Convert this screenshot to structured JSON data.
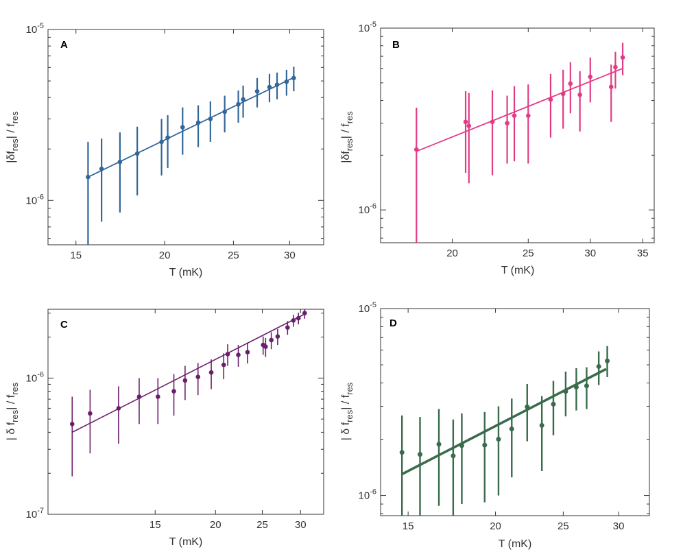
{
  "chart_data": [
    {
      "type": "scatter",
      "panel": "A",
      "color": "#336699",
      "xscale": "log",
      "yscale": "log",
      "xlim": [
        13.7,
        33.5
      ],
      "ylim": [
        5.5e-07,
        1e-05
      ],
      "xticks": [
        15,
        20,
        25,
        30
      ],
      "xtick_labels": [
        "15",
        "20",
        "25",
        "30"
      ],
      "yticks": [
        1e-06,
        1e-05
      ],
      "ytick_labels": [
        {
          "base": "10",
          "exp": "-6"
        },
        {
          "base": "10",
          "exp": "-5"
        }
      ],
      "xlabel": "T (mK)",
      "ylabel": {
        "parts": [
          "|δf",
          "res",
          "| / f",
          "res"
        ]
      },
      "fit": {
        "x": [
          15.6,
          30.3
        ],
        "y": [
          1.37e-06,
          5.2e-06
        ]
      },
      "points": [
        {
          "x": 15.6,
          "y": 1.37e-06,
          "ylo": 5.5e-07,
          "yhi": 2.2e-06
        },
        {
          "x": 16.3,
          "y": 1.53e-06,
          "ylo": 7.5e-07,
          "yhi": 2.3e-06
        },
        {
          "x": 17.3,
          "y": 1.68e-06,
          "ylo": 8.5e-07,
          "yhi": 2.5e-06
        },
        {
          "x": 18.3,
          "y": 1.88e-06,
          "ylo": 1.07e-06,
          "yhi": 2.7e-06
        },
        {
          "x": 19.8,
          "y": 2.2e-06,
          "ylo": 1.4e-06,
          "yhi": 3e-06
        },
        {
          "x": 20.2,
          "y": 2.33e-06,
          "ylo": 1.55e-06,
          "yhi": 3.15e-06
        },
        {
          "x": 21.2,
          "y": 2.68e-06,
          "ylo": 1.85e-06,
          "yhi": 3.5e-06
        },
        {
          "x": 22.3,
          "y": 2.85e-06,
          "ylo": 2.05e-06,
          "yhi": 3.6e-06
        },
        {
          "x": 23.2,
          "y": 3e-06,
          "ylo": 2.2e-06,
          "yhi": 3.8e-06
        },
        {
          "x": 24.3,
          "y": 3.3e-06,
          "ylo": 2.5e-06,
          "yhi": 4.1e-06
        },
        {
          "x": 25.4,
          "y": 3.65e-06,
          "ylo": 2.85e-06,
          "yhi": 4.4e-06
        },
        {
          "x": 25.8,
          "y": 3.9e-06,
          "ylo": 3.05e-06,
          "yhi": 4.7e-06
        },
        {
          "x": 27.0,
          "y": 4.35e-06,
          "ylo": 3.5e-06,
          "yhi": 5.2e-06
        },
        {
          "x": 28.1,
          "y": 4.6e-06,
          "ylo": 3.75e-06,
          "yhi": 5.5e-06
        },
        {
          "x": 28.8,
          "y": 4.75e-06,
          "ylo": 3.9e-06,
          "yhi": 5.6e-06
        },
        {
          "x": 29.7,
          "y": 4.95e-06,
          "ylo": 4.1e-06,
          "yhi": 5.8e-06
        },
        {
          "x": 30.4,
          "y": 5.2e-06,
          "ylo": 4.35e-06,
          "yhi": 6.05e-06
        }
      ]
    },
    {
      "type": "scatter",
      "panel": "B",
      "color": "#e23b86",
      "xscale": "log",
      "yscale": "log",
      "xlim": [
        16.2,
        36.2
      ],
      "ylim": [
        6.6e-07,
        1e-05
      ],
      "xticks": [
        20,
        25,
        30,
        35
      ],
      "xtick_labels": [
        "20",
        "25",
        "30",
        "35"
      ],
      "yticks": [
        1e-06,
        1e-05
      ],
      "ytick_labels": [
        {
          "base": "10",
          "exp": "-6"
        },
        {
          "base": "10",
          "exp": "-5"
        }
      ],
      "xlabel": "T (mK)",
      "ylabel": {
        "parts": [
          "|δf",
          "res",
          "| / f",
          "res"
        ]
      },
      "fit": {
        "x": [
          18.0,
          33.0
        ],
        "y": [
          2.1e-06,
          6e-06
        ]
      },
      "points": [
        {
          "x": 18.0,
          "y": 2.15e-06,
          "ylo": 6.6e-07,
          "yhi": 3.65e-06
        },
        {
          "x": 20.8,
          "y": 3.05e-06,
          "ylo": 1.6e-06,
          "yhi": 4.5e-06
        },
        {
          "x": 21.0,
          "y": 2.9e-06,
          "ylo": 1.4e-06,
          "yhi": 4.4e-06
        },
        {
          "x": 22.5,
          "y": 3.05e-06,
          "ylo": 1.55e-06,
          "yhi": 4.55e-06
        },
        {
          "x": 23.5,
          "y": 3e-06,
          "ylo": 1.8e-06,
          "yhi": 4.25e-06
        },
        {
          "x": 24.0,
          "y": 3.3e-06,
          "ylo": 1.85e-06,
          "yhi": 4.8e-06
        },
        {
          "x": 25.0,
          "y": 3.3e-06,
          "ylo": 1.8e-06,
          "yhi": 4.9e-06
        },
        {
          "x": 26.7,
          "y": 4.05e-06,
          "ylo": 2.5e-06,
          "yhi": 5.6e-06
        },
        {
          "x": 27.7,
          "y": 4.35e-06,
          "ylo": 2.8e-06,
          "yhi": 5.9e-06
        },
        {
          "x": 28.3,
          "y": 4.95e-06,
          "ylo": 3.4e-06,
          "yhi": 6.5e-06
        },
        {
          "x": 29.1,
          "y": 4.3e-06,
          "ylo": 2.7e-06,
          "yhi": 5.8e-06
        },
        {
          "x": 30.0,
          "y": 5.4e-06,
          "ylo": 3.9e-06,
          "yhi": 6.9e-06
        },
        {
          "x": 31.9,
          "y": 4.75e-06,
          "ylo": 3.05e-06,
          "yhi": 6.3e-06
        },
        {
          "x": 32.3,
          "y": 6.1e-06,
          "ylo": 4.65e-06,
          "yhi": 7.4e-06
        },
        {
          "x": 33.0,
          "y": 6.9e-06,
          "ylo": 5.5e-06,
          "yhi": 8.3e-06
        }
      ]
    },
    {
      "type": "scatter",
      "panel": "C",
      "color": "#6a1f6a",
      "xscale": "log",
      "yscale": "log",
      "xlim": [
        9.0,
        33.5
      ],
      "ylim": [
        1e-07,
        3.2e-06
      ],
      "xticks": [
        15,
        20,
        25,
        30
      ],
      "xtick_labels": [
        "15",
        "20",
        "25",
        "30"
      ],
      "yticks": [
        1e-07,
        1e-06
      ],
      "ytick_labels": [
        {
          "base": "10",
          "exp": "-7"
        },
        {
          "base": "10",
          "exp": "-6"
        }
      ],
      "xlabel": "T (mK)",
      "ylabel": {
        "parts": [
          "| δ f",
          "res",
          "| / f",
          "res"
        ]
      },
      "fit": {
        "x": [
          10.1,
          30.6
        ],
        "y": [
          4e-07,
          2.95e-06
        ]
      },
      "points": [
        {
          "x": 10.1,
          "y": 4.6e-07,
          "ylo": 1.9e-07,
          "yhi": 7.3e-07
        },
        {
          "x": 11.0,
          "y": 5.5e-07,
          "ylo": 2.8e-07,
          "yhi": 8.2e-07
        },
        {
          "x": 12.6,
          "y": 6e-07,
          "ylo": 3.3e-07,
          "yhi": 8.7e-07
        },
        {
          "x": 13.9,
          "y": 7.3e-07,
          "ylo": 4.6e-07,
          "yhi": 1e-06
        },
        {
          "x": 15.2,
          "y": 7.3e-07,
          "ylo": 4.6e-07,
          "yhi": 1e-06
        },
        {
          "x": 16.4,
          "y": 8e-07,
          "ylo": 5.3e-07,
          "yhi": 1.07e-06
        },
        {
          "x": 17.3,
          "y": 9.6e-07,
          "ylo": 6.9e-07,
          "yhi": 1.23e-06
        },
        {
          "x": 18.4,
          "y": 1.02e-06,
          "ylo": 7.5e-07,
          "yhi": 1.29e-06
        },
        {
          "x": 19.6,
          "y": 1.1e-06,
          "ylo": 8.3e-07,
          "yhi": 1.37e-06
        },
        {
          "x": 20.8,
          "y": 1.25e-06,
          "ylo": 9.8e-07,
          "yhi": 1.52e-06
        },
        {
          "x": 21.2,
          "y": 1.5e-06,
          "ylo": 1.23e-06,
          "yhi": 1.77e-06
        },
        {
          "x": 22.3,
          "y": 1.48e-06,
          "ylo": 1.21e-06,
          "yhi": 1.75e-06
        },
        {
          "x": 23.3,
          "y": 1.55e-06,
          "ylo": 1.28e-06,
          "yhi": 1.82e-06
        },
        {
          "x": 25.1,
          "y": 1.75e-06,
          "ylo": 1.48e-06,
          "yhi": 2.02e-06
        },
        {
          "x": 25.4,
          "y": 1.7e-06,
          "ylo": 1.43e-06,
          "yhi": 1.97e-06
        },
        {
          "x": 26.1,
          "y": 1.9e-06,
          "ylo": 1.63e-06,
          "yhi": 2.17e-06
        },
        {
          "x": 26.9,
          "y": 2.02e-06,
          "ylo": 1.75e-06,
          "yhi": 2.29e-06
        },
        {
          "x": 28.2,
          "y": 2.35e-06,
          "ylo": 2.08e-06,
          "yhi": 2.62e-06
        },
        {
          "x": 29.0,
          "y": 2.65e-06,
          "ylo": 2.38e-06,
          "yhi": 2.92e-06
        },
        {
          "x": 29.7,
          "y": 2.75e-06,
          "ylo": 2.48e-06,
          "yhi": 3.02e-06
        },
        {
          "x": 30.6,
          "y": 3e-06,
          "ylo": 2.73e-06,
          "yhi": 3.27e-06
        }
      ]
    },
    {
      "type": "scatter",
      "panel": "D",
      "color": "#3a6b4c",
      "xscale": "log",
      "yscale": "log",
      "xlim": [
        13.7,
        33.2
      ],
      "ylim": [
        7.8e-07,
        1e-05
      ],
      "xticks": [
        15,
        20,
        25,
        30
      ],
      "xtick_labels": [
        "15",
        "20",
        "25",
        "30"
      ],
      "yticks": [
        1e-06,
        1e-05
      ],
      "ytick_labels": [
        {
          "base": "10",
          "exp": "-6"
        },
        {
          "base": "10",
          "exp": "-5"
        }
      ],
      "xlabel": "T (mK)",
      "ylabel": {
        "parts": [
          "| δ f",
          "res",
          "| / f",
          "res"
        ]
      },
      "fit": {
        "x": [
          14.7,
          28.8
        ],
        "y": [
          1.3e-06,
          4.75e-06
        ]
      },
      "points": [
        {
          "x": 14.7,
          "y": 1.7e-06,
          "ylo": 7.4e-07,
          "yhi": 2.68e-06
        },
        {
          "x": 15.6,
          "y": 1.66e-06,
          "ylo": 7e-07,
          "yhi": 2.63e-06
        },
        {
          "x": 16.6,
          "y": 1.88e-06,
          "ylo": 8.8e-07,
          "yhi": 2.9e-06
        },
        {
          "x": 17.4,
          "y": 1.63e-06,
          "ylo": 7.6e-07,
          "yhi": 2.55e-06
        },
        {
          "x": 17.9,
          "y": 1.85e-06,
          "ylo": 9e-07,
          "yhi": 2.75e-06
        },
        {
          "x": 19.3,
          "y": 1.86e-06,
          "ylo": 9.2e-07,
          "yhi": 2.8e-06
        },
        {
          "x": 20.2,
          "y": 2e-06,
          "ylo": 1e-06,
          "yhi": 3e-06
        },
        {
          "x": 21.1,
          "y": 2.27e-06,
          "ylo": 1.25e-06,
          "yhi": 3.3e-06
        },
        {
          "x": 22.2,
          "y": 2.98e-06,
          "ylo": 1.95e-06,
          "yhi": 3.95e-06
        },
        {
          "x": 23.3,
          "y": 2.37e-06,
          "ylo": 1.35e-06,
          "yhi": 3.4e-06
        },
        {
          "x": 24.2,
          "y": 3.08e-06,
          "ylo": 2.1e-06,
          "yhi": 4.1e-06
        },
        {
          "x": 25.2,
          "y": 3.6e-06,
          "ylo": 2.65e-06,
          "yhi": 4.6e-06
        },
        {
          "x": 26.1,
          "y": 3.8e-06,
          "ylo": 2.85e-06,
          "yhi": 4.8e-06
        },
        {
          "x": 27.0,
          "y": 3.86e-06,
          "ylo": 2.9e-06,
          "yhi": 4.85e-06
        },
        {
          "x": 28.1,
          "y": 4.9e-06,
          "ylo": 3.9e-06,
          "yhi": 5.9e-06
        },
        {
          "x": 28.9,
          "y": 5.25e-06,
          "ylo": 4.3e-06,
          "yhi": 6.3e-06
        }
      ]
    }
  ]
}
